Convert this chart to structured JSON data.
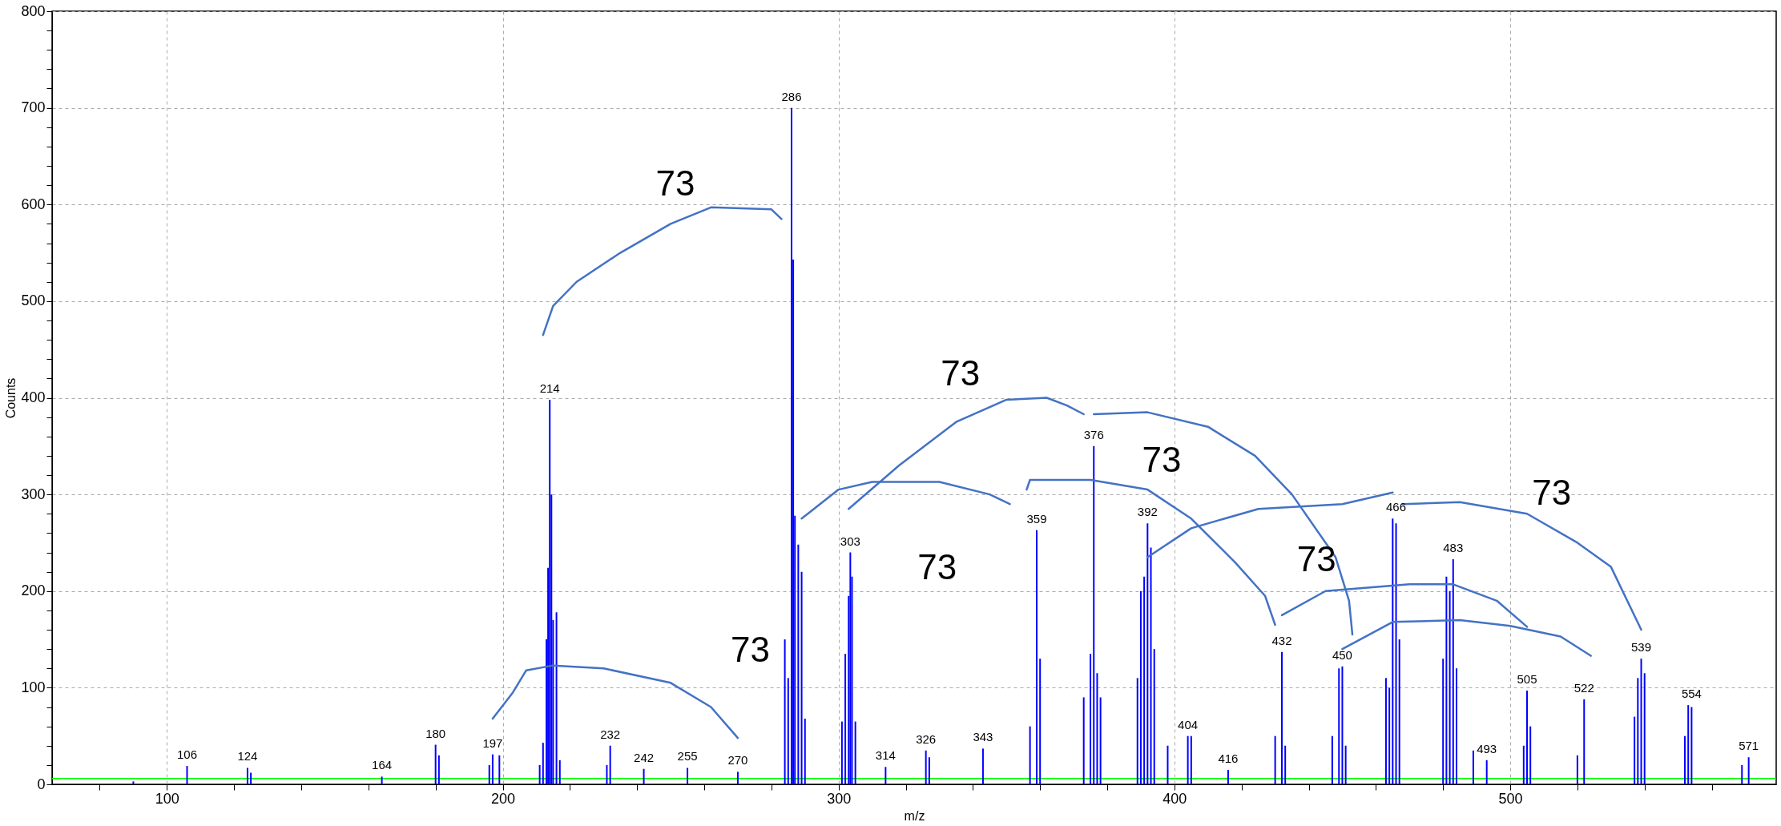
{
  "chart_data": {
    "type": "bar",
    "xlabel": "m/z",
    "ylabel": "Counts",
    "xlim": [
      67,
      578
    ],
    "ylim": [
      0,
      800
    ],
    "xticks": [
      {
        "value": 80,
        "label": null
      },
      100,
      {
        "value": 120,
        "label": null
      },
      {
        "value": 140,
        "label": null
      },
      {
        "value": 160,
        "label": null
      },
      {
        "value": 180,
        "label": null
      },
      200,
      {
        "value": 220,
        "label": null
      },
      {
        "value": 240,
        "label": null
      },
      {
        "value": 260,
        "label": null
      },
      {
        "value": 280,
        "label": null
      },
      300,
      {
        "value": 320,
        "label": null
      },
      {
        "value": 340,
        "label": null
      },
      {
        "value": 360,
        "label": null
      },
      {
        "value": 380,
        "label": null
      },
      400,
      {
        "value": 420,
        "label": null
      },
      {
        "value": 440,
        "label": null
      },
      {
        "value": 460,
        "label": null
      },
      {
        "value": 480,
        "label": null
      },
      500,
      {
        "value": 520,
        "label": null
      },
      {
        "value": 540,
        "label": null
      },
      {
        "value": 560,
        "label": null
      }
    ],
    "yticks": [
      0,
      {
        "value": 20,
        "label": null
      },
      {
        "value": 40,
        "label": null
      },
      {
        "value": 60,
        "label": null
      },
      {
        "value": 80,
        "label": null
      },
      100,
      {
        "value": 120,
        "label": null
      },
      {
        "value": 140,
        "label": null
      },
      {
        "value": 160,
        "label": null
      },
      {
        "value": 180,
        "label": null
      },
      200,
      {
        "value": 220,
        "label": null
      },
      {
        "value": 240,
        "label": null
      },
      {
        "value": 260,
        "label": null
      },
      {
        "value": 280,
        "label": null
      },
      300,
      {
        "value": 320,
        "label": null
      },
      {
        "value": 340,
        "label": null
      },
      {
        "value": 360,
        "label": null
      },
      {
        "value": 380,
        "label": null
      },
      400,
      {
        "value": 420,
        "label": null
      },
      {
        "value": 440,
        "label": null
      },
      {
        "value": 460,
        "label": null
      },
      {
        "value": 480,
        "label": null
      },
      500,
      {
        "value": 520,
        "label": null
      },
      {
        "value": 540,
        "label": null
      },
      {
        "value": 560,
        "label": null
      },
      {
        "value": 580,
        "label": null
      },
      600,
      {
        "value": 620,
        "label": null
      },
      {
        "value": 640,
        "label": null
      },
      {
        "value": 660,
        "label": null
      },
      {
        "value": 680,
        "label": null
      },
      700,
      {
        "value": 720,
        "label": null
      },
      {
        "value": 740,
        "label": null
      },
      {
        "value": 760,
        "label": null
      },
      {
        "value": 780,
        "label": null
      },
      800
    ],
    "grid": true,
    "series": [
      {
        "color": "#0000ff",
        "x": [
          90,
          106,
          124,
          125,
          164,
          180,
          181,
          196,
          197,
          199,
          211,
          212,
          213,
          213.5,
          214,
          214.5,
          215,
          216,
          217,
          231,
          232,
          242,
          255,
          270,
          284,
          285,
          286,
          286.5,
          287,
          288,
          289,
          290,
          301,
          302,
          303,
          303.5,
          304,
          305,
          314,
          326,
          327,
          343,
          357,
          359,
          360,
          373,
          375,
          376,
          377,
          378,
          389,
          390,
          391,
          392,
          393,
          394,
          398,
          404,
          405,
          416,
          430,
          432,
          433,
          447,
          449,
          450,
          451,
          463,
          464,
          465,
          466,
          467,
          480,
          481,
          482,
          483,
          484,
          489,
          493,
          504,
          505,
          506,
          520,
          522,
          537,
          538,
          539,
          540,
          552,
          553,
          554,
          569,
          571
        ],
        "values": [
          3,
          19,
          17,
          12,
          8,
          41,
          30,
          20,
          31,
          30,
          20,
          43,
          150,
          224,
          398,
          300,
          170,
          178,
          25,
          20,
          40,
          16,
          17,
          13,
          150,
          110,
          700,
          543,
          278,
          248,
          220,
          68,
          65,
          135,
          195,
          240,
          215,
          65,
          18,
          35,
          28,
          37,
          60,
          263,
          130,
          90,
          135,
          350,
          115,
          90,
          110,
          200,
          215,
          270,
          245,
          140,
          40,
          50,
          50,
          15,
          50,
          137,
          40,
          50,
          120,
          122,
          40,
          110,
          100,
          275,
          270,
          150,
          130,
          215,
          200,
          233,
          120,
          35,
          25,
          40,
          97,
          60,
          30,
          88,
          70,
          110,
          130,
          115,
          50,
          82,
          80,
          20,
          28
        ]
      },
      {
        "type": "line",
        "color": "#4472c4",
        "x": [
          212,
          215,
          222,
          235,
          250,
          262,
          280,
          283
        ],
        "values": [
          465,
          495,
          520,
          550,
          580,
          597,
          595,
          585
        ]
      },
      {
        "type": "line",
        "color": "#4472c4",
        "x": [
          197,
          203,
          207,
          215,
          230,
          250,
          262,
          270
        ],
        "values": [
          68,
          95,
          118,
          123,
          120,
          105,
          80,
          48
        ]
      },
      {
        "type": "line",
        "color": "#4472c4",
        "x": [
          289,
          300,
          310,
          330,
          345,
          351
        ],
        "values": [
          275,
          305,
          313,
          313,
          300,
          290
        ]
      },
      {
        "type": "line",
        "color": "#4472c4",
        "x": [
          303,
          318,
          335,
          350,
          362,
          368,
          373
        ],
        "values": [
          285,
          330,
          375,
          398,
          400,
          392,
          383
        ]
      },
      {
        "type": "line",
        "color": "#4472c4",
        "x": [
          356,
          357,
          375,
          392,
          405,
          418,
          427,
          430
        ],
        "values": [
          305,
          315,
          315,
          305,
          275,
          230,
          195,
          165
        ]
      },
      {
        "type": "line",
        "color": "#4472c4",
        "x": [
          376,
          392,
          410,
          424,
          435,
          448,
          452,
          453
        ],
        "values": [
          383,
          385,
          370,
          340,
          300,
          235,
          190,
          155
        ]
      },
      {
        "type": "line",
        "color": "#4472c4",
        "x": [
          392,
          405,
          425,
          450,
          465
        ],
        "values": [
          235,
          265,
          285,
          290,
          302
        ]
      },
      {
        "type": "line",
        "color": "#4472c4",
        "x": [
          468,
          485,
          505,
          520,
          530,
          539
        ],
        "values": [
          290,
          292,
          280,
          250,
          225,
          160
        ]
      },
      {
        "type": "line",
        "color": "#4472c4",
        "x": [
          432,
          445,
          470,
          483,
          496,
          505
        ],
        "values": [
          175,
          200,
          207,
          207,
          190,
          163
        ]
      },
      {
        "type": "line",
        "color": "#4472c4",
        "x": [
          450,
          465,
          485,
          500,
          515,
          524
        ],
        "values": [
          140,
          168,
          170,
          164,
          153,
          133
        ]
      }
    ],
    "ref_lines": [
      {
        "axis": "y",
        "value": 6,
        "color": "#00ff00"
      }
    ],
    "annotations": [
      {
        "text": "106",
        "x": 106,
        "y": 19
      },
      {
        "text": "124",
        "x": 124,
        "y": 17
      },
      {
        "text": "164",
        "x": 164,
        "y": 8
      },
      {
        "text": "180",
        "x": 180,
        "y": 41
      },
      {
        "text": "197",
        "x": 197,
        "y": 31
      },
      {
        "text": "214",
        "x": 214,
        "y": 398
      },
      {
        "text": "232",
        "x": 232,
        "y": 40
      },
      {
        "text": "242",
        "x": 242,
        "y": 16
      },
      {
        "text": "255",
        "x": 255,
        "y": 17
      },
      {
        "text": "270",
        "x": 270,
        "y": 13
      },
      {
        "text": "286",
        "x": 286,
        "y": 700
      },
      {
        "text": "303",
        "x": 303.5,
        "y": 240
      },
      {
        "text": "314",
        "x": 314,
        "y": 18
      },
      {
        "text": "326",
        "x": 326,
        "y": 35
      },
      {
        "text": "343",
        "x": 343,
        "y": 37
      },
      {
        "text": "359",
        "x": 359,
        "y": 263
      },
      {
        "text": "376",
        "x": 376,
        "y": 350
      },
      {
        "text": "392",
        "x": 392,
        "y": 270
      },
      {
        "text": "404",
        "x": 404,
        "y": 50
      },
      {
        "text": "416",
        "x": 416,
        "y": 15
      },
      {
        "text": "432",
        "x": 432,
        "y": 137
      },
      {
        "text": "450",
        "x": 450,
        "y": 122
      },
      {
        "text": "466",
        "x": 466,
        "y": 275
      },
      {
        "text": "483",
        "x": 483,
        "y": 233
      },
      {
        "text": "493",
        "x": 493,
        "y": 25
      },
      {
        "text": "505",
        "x": 505,
        "y": 97
      },
      {
        "text": "522",
        "x": 522,
        "y": 88
      },
      {
        "text": "539",
        "x": 539,
        "y": 130
      },
      {
        "text": "554",
        "x": 554,
        "y": 82
      },
      {
        "text": "571",
        "x": 571,
        "y": 28
      },
      "73",
      "73",
      "73",
      "73",
      "73",
      "73",
      "73"
    ]
  }
}
